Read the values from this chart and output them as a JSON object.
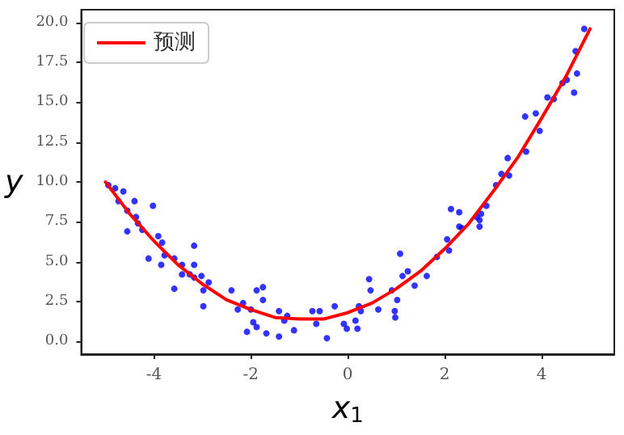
{
  "chart_data": {
    "type": "scatter",
    "xlabel": "x$_{1}$",
    "ylabel": "y",
    "xlim": [
      -5.5,
      5.5
    ],
    "xticks": [
      -4,
      -2,
      0,
      2,
      4
    ],
    "ylim": [
      -0.8,
      20.8
    ],
    "yticks": [
      {
        "value": 0,
        "label": "0.0"
      },
      {
        "value": 2.5,
        "label": "2.5"
      },
      {
        "value": 5,
        "label": "5.0"
      },
      {
        "value": 7.5,
        "label": "7.5"
      },
      {
        "value": 10,
        "label": "10.0"
      },
      {
        "value": 12.5,
        "label": "12.5"
      },
      {
        "value": 15,
        "label": "15.0"
      },
      {
        "value": 17.5,
        "label": "17.5"
      },
      {
        "value": 20,
        "label": "20.0"
      }
    ],
    "grid": false,
    "legend": "top left",
    "series": [
      {
        "color": "#0000ff",
        "marker": "circle",
        "x": [
          -4.94,
          -4.8,
          -4.63,
          -4.73,
          -4.4,
          -4.55,
          -4.37,
          -4.33,
          -4.24,
          -4.55,
          -4.02,
          -4.11,
          -3.91,
          -3.83,
          -3.85,
          -3.78,
          -3.58,
          -3.58,
          -3.42,
          -3.42,
          -3.26,
          -3.17,
          -3.17,
          -3.17,
          -3.02,
          -2.98,
          -2.98,
          -2.87,
          -2.4,
          -2.27,
          -2.16,
          -2.08,
          -2.0,
          -1.95,
          -1.88,
          -1.88,
          -1.75,
          -1.75,
          -1.68,
          -1.42,
          -1.42,
          -1.31,
          -1.25,
          -1.11,
          -0.73,
          -0.65,
          -0.58,
          -0.43,
          -0.27,
          -0.08,
          -0.02,
          0.16,
          0.2,
          0.23,
          0.27,
          0.44,
          0.47,
          0.63,
          0.91,
          0.97,
          0.98,
          1.02,
          1.08,
          1.13,
          1.24,
          1.38,
          1.63,
          1.84,
          2.05,
          2.09,
          2.13,
          2.3,
          2.3,
          2.36,
          2.66,
          2.72,
          2.72,
          2.75,
          2.86,
          3.06,
          3.17,
          3.33,
          3.3,
          3.68,
          3.66,
          3.88,
          3.96,
          4.12,
          4.25,
          4.43,
          4.52,
          4.67,
          4.73,
          4.7,
          4.88
        ],
        "values": [
          9.8,
          9.6,
          9.4,
          8.8,
          8.8,
          8.2,
          7.8,
          7.4,
          7.0,
          6.9,
          8.5,
          5.2,
          6.6,
          6.2,
          4.8,
          5.4,
          5.2,
          3.3,
          4.8,
          4.2,
          4.2,
          6.0,
          4.8,
          4.0,
          4.1,
          3.2,
          2.2,
          3.7,
          3.2,
          2.0,
          2.4,
          0.6,
          2.0,
          1.2,
          0.9,
          3.2,
          3.4,
          2.6,
          0.5,
          1.9,
          0.3,
          1.3,
          1.6,
          0.7,
          1.9,
          1.1,
          1.9,
          0.2,
          2.2,
          1.1,
          0.8,
          1.3,
          0.8,
          2.2,
          1.9,
          3.9,
          3.2,
          2.0,
          3.2,
          1.9,
          1.5,
          2.6,
          5.5,
          4.1,
          4.4,
          3.5,
          4.1,
          5.3,
          6.4,
          5.7,
          8.3,
          8.1,
          7.2,
          7.1,
          7.8,
          7.6,
          7.2,
          8.0,
          8.5,
          9.8,
          10.5,
          10.4,
          11.5,
          11.9,
          14.1,
          14.3,
          13.2,
          15.3,
          15.2,
          16.2,
          16.4,
          15.6,
          16.8,
          18.2,
          19.6
        ]
      },
      {
        "type": "line",
        "name": "预测",
        "color": "#ff0000",
        "marker": "none",
        "line_style": "solid",
        "x": [
          -5,
          -4.5,
          -4,
          -3.5,
          -3,
          -2.5,
          -2,
          -1.5,
          -1,
          -0.5,
          0,
          0.5,
          1,
          1.5,
          2,
          2.5,
          3,
          3.5,
          4,
          4.5,
          5
        ],
        "values": [
          10.0,
          8.0,
          6.3,
          4.8,
          3.6,
          2.6,
          2.0,
          1.5,
          1.4,
          1.4,
          1.8,
          2.4,
          3.3,
          4.4,
          5.8,
          7.4,
          9.4,
          11.5,
          14.0,
          16.6,
          19.6
        ]
      }
    ]
  }
}
